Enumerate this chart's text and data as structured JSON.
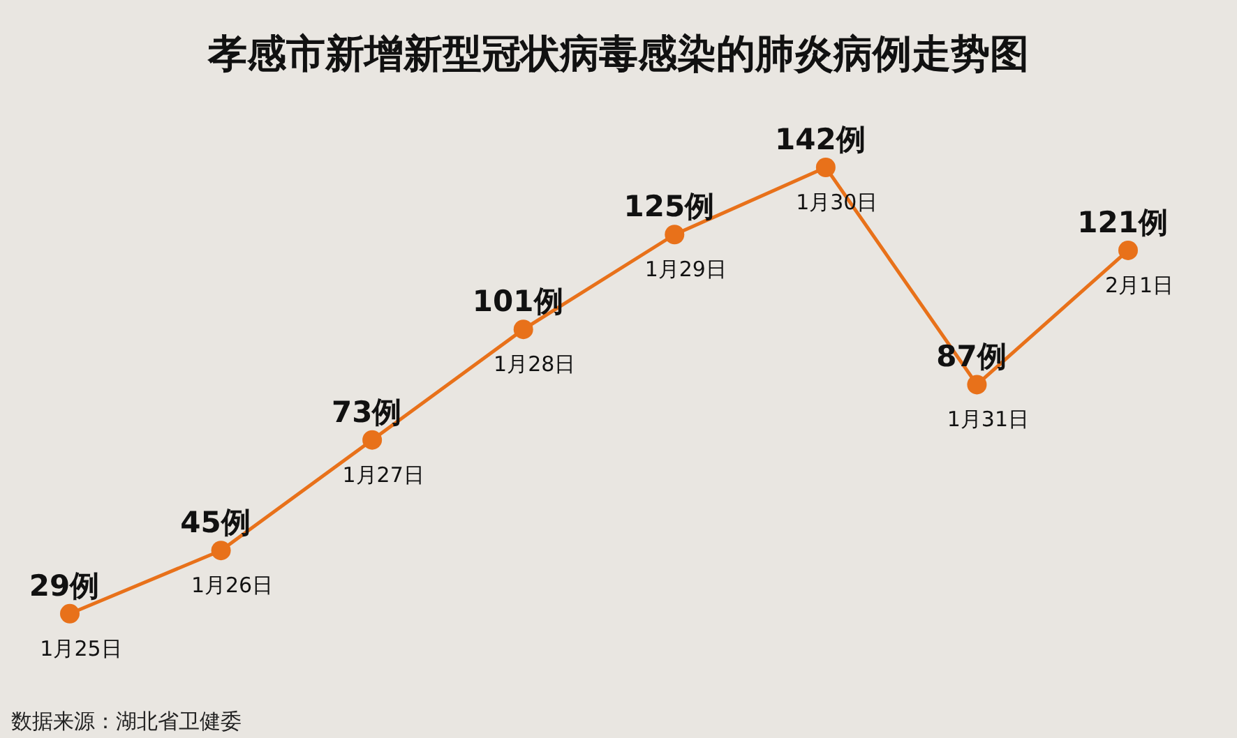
{
  "chart_data": {
    "type": "line",
    "title": "孝感市新增新型冠状病毒感染的肺炎病例走势图",
    "categories": [
      "1月25日",
      "1月26日",
      "1月27日",
      "1月28日",
      "1月29日",
      "1月30日",
      "1月31日",
      "2月1日"
    ],
    "values": [
      29,
      45,
      73,
      101,
      125,
      142,
      87,
      121
    ],
    "color": "#e8711a",
    "value_labels": [
      "29例",
      "45例",
      "73例",
      "101例",
      "125例",
      "142例",
      "87例",
      "121例"
    ],
    "marker": "circle",
    "line_style": "solid",
    "annotations": [
      "数据来源：湖北省卫健委"
    ]
  }
}
